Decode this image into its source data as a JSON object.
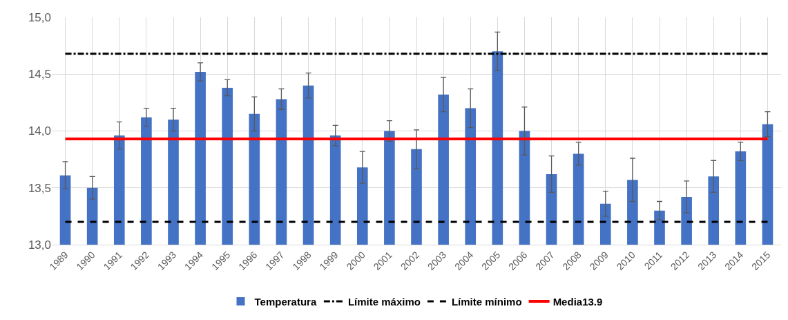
{
  "chart_data": {
    "type": "bar",
    "categories": [
      "1989",
      "1990",
      "1991",
      "1992",
      "1993",
      "1994",
      "1995",
      "1996",
      "1997",
      "1998",
      "1999",
      "2000",
      "2001",
      "2002",
      "2003",
      "2004",
      "2005",
      "2006",
      "2007",
      "2008",
      "2009",
      "2010",
      "2011",
      "2012",
      "2013",
      "2014",
      "2015"
    ],
    "series": [
      {
        "name": "Temperatura",
        "color": "#4472c4",
        "values": [
          13.61,
          13.5,
          13.96,
          14.12,
          14.1,
          14.52,
          14.38,
          14.15,
          14.28,
          14.4,
          13.96,
          13.68,
          14.0,
          13.84,
          14.32,
          14.2,
          14.7,
          14.0,
          13.62,
          13.8,
          13.36,
          13.57,
          13.3,
          13.42,
          13.6,
          13.82,
          14.06
        ],
        "errors": [
          0.12,
          0.1,
          0.12,
          0.08,
          0.1,
          0.08,
          0.07,
          0.15,
          0.09,
          0.11,
          0.09,
          0.14,
          0.09,
          0.17,
          0.15,
          0.17,
          0.17,
          0.21,
          0.16,
          0.1,
          0.11,
          0.19,
          0.08,
          0.14,
          0.14,
          0.08,
          0.11
        ]
      }
    ],
    "ylim": [
      13,
      15
    ],
    "yticks": [
      {
        "value": 13,
        "label": "13,0"
      },
      {
        "value": 13.5,
        "label": "13,5"
      },
      {
        "value": 14,
        "label": "14,0"
      },
      {
        "value": 14.5,
        "label": "14,5"
      },
      {
        "value": 15,
        "label": "15,0"
      }
    ],
    "ref_lines": [
      {
        "axis": "y",
        "value": 14.68,
        "label": "Límite máximo",
        "color": "#000000",
        "line_style": "dashdot"
      },
      {
        "axis": "y",
        "value": 13.2,
        "label": "Límite mínimo",
        "color": "#000000",
        "line_style": "dashed"
      },
      {
        "axis": "y",
        "value": 13.93,
        "label": "Media13.9",
        "color": "#ff0000",
        "line_style": "solid"
      }
    ],
    "grid": true,
    "legend": "bottom"
  }
}
